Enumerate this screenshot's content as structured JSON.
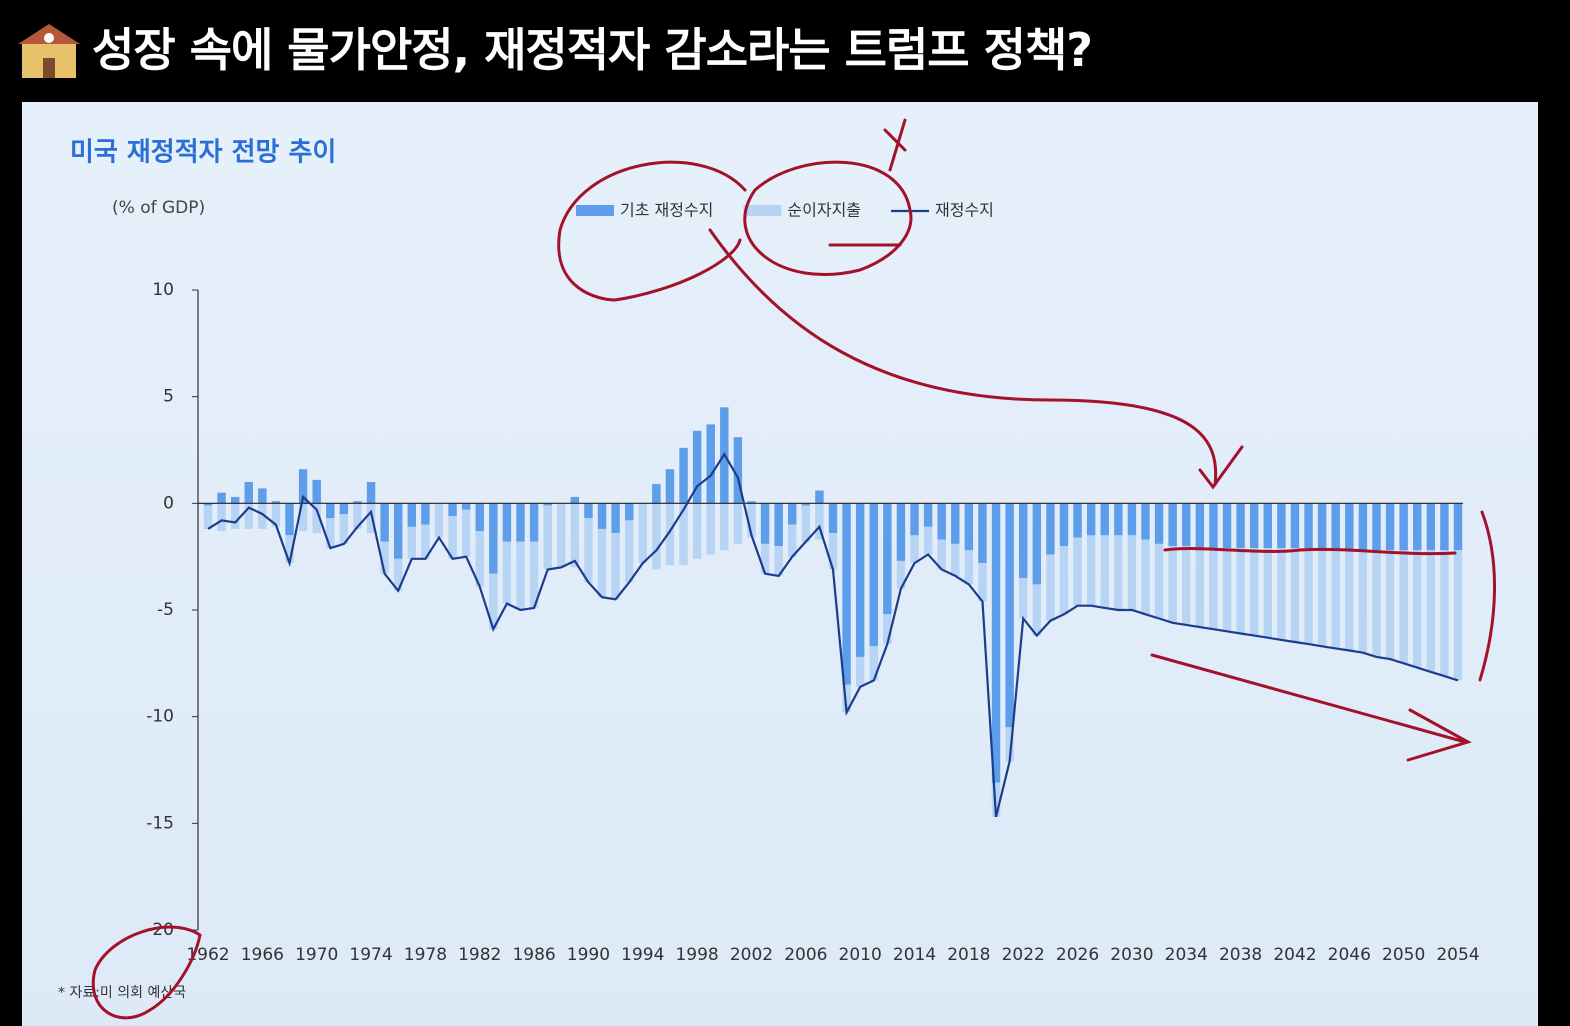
{
  "header": {
    "title": "성장 속에 물가안정, 재정적자 감소라는 트럼프 정책?"
  },
  "chart_data": {
    "type": "bar",
    "title": "미국 재정적자 전망 추이",
    "y_label": "(% of GDP)",
    "note": "* 자료:미 의회 예산국",
    "x": [
      1962,
      1963,
      1964,
      1965,
      1966,
      1967,
      1968,
      1969,
      1970,
      1971,
      1972,
      1973,
      1974,
      1975,
      1976,
      1977,
      1978,
      1979,
      1980,
      1981,
      1982,
      1983,
      1984,
      1985,
      1986,
      1987,
      1988,
      1989,
      1990,
      1991,
      1992,
      1993,
      1994,
      1995,
      1996,
      1997,
      1998,
      1999,
      2000,
      2001,
      2002,
      2003,
      2004,
      2005,
      2006,
      2007,
      2008,
      2009,
      2010,
      2011,
      2012,
      2013,
      2014,
      2015,
      2016,
      2017,
      2018,
      2019,
      2020,
      2021,
      2022,
      2023,
      2024,
      2025,
      2026,
      2027,
      2028,
      2029,
      2030,
      2031,
      2032,
      2033,
      2034,
      2035,
      2036,
      2037,
      2038,
      2039,
      2040,
      2041,
      2042,
      2043,
      2044,
      2045,
      2046,
      2047,
      2048,
      2049,
      2050,
      2051,
      2052,
      2053,
      2054
    ],
    "xlim": [
      1962,
      2054
    ],
    "xticks": [
      1962,
      1966,
      1970,
      1974,
      1978,
      1982,
      1986,
      1990,
      1994,
      1998,
      2002,
      2006,
      2010,
      2014,
      2018,
      2022,
      2026,
      2030,
      2034,
      2038,
      2042,
      2046,
      2050,
      2054
    ],
    "ylim": [
      -20,
      10
    ],
    "yticks": [
      -20,
      -15,
      -10,
      -5,
      0,
      5,
      10
    ],
    "series": [
      {
        "name": "기초 재정수지",
        "type": "bar",
        "color": "#5d9de9",
        "values": [
          -0.1,
          0.5,
          0.3,
          1.0,
          0.7,
          0.1,
          -1.5,
          1.6,
          1.1,
          -0.7,
          -0.5,
          0.1,
          1.0,
          -1.8,
          -2.6,
          -1.1,
          -1.0,
          0.0,
          -0.6,
          -0.3,
          -1.3,
          -3.3,
          -1.8,
          -1.8,
          -1.8,
          -0.1,
          0.0,
          0.3,
          -0.7,
          -1.2,
          -1.4,
          -0.8,
          0.0,
          0.9,
          1.6,
          2.6,
          3.4,
          3.7,
          4.5,
          3.1,
          0.1,
          -1.9,
          -2.0,
          -1.0,
          -0.1,
          0.6,
          -1.4,
          -8.5,
          -7.2,
          -6.7,
          -5.2,
          -2.7,
          -1.5,
          -1.1,
          -1.7,
          -1.9,
          -2.2,
          -2.8,
          -13.1,
          -10.5,
          -3.5,
          -3.8,
          -2.4,
          -2.0,
          -1.6,
          -1.5,
          -1.5,
          -1.5,
          -1.5,
          -1.7,
          -1.9,
          -2.0,
          -2.0,
          -2.1,
          -2.1,
          -2.1,
          -2.1,
          -2.1,
          -2.1,
          -2.1,
          -2.1,
          -2.1,
          -2.2,
          -2.2,
          -2.2,
          -2.2,
          -2.2,
          -2.2,
          -2.2,
          -2.2,
          -2.2,
          -2.2,
          -2.2
        ]
      },
      {
        "name": "순이자지출",
        "type": "bar",
        "color": "#b7d4f5",
        "values": [
          -1.1,
          -1.3,
          -1.2,
          -1.2,
          -1.2,
          -1.1,
          -1.3,
          -1.3,
          -1.4,
          -1.4,
          -1.4,
          -1.2,
          -1.4,
          -1.5,
          -1.5,
          -1.5,
          -1.6,
          -1.6,
          -2.0,
          -2.2,
          -2.6,
          -2.6,
          -2.9,
          -3.2,
          -3.1,
          -3.0,
          -3.0,
          -3.0,
          -3.0,
          -3.2,
          -3.1,
          -2.9,
          -2.8,
          -3.1,
          -2.9,
          -2.9,
          -2.6,
          -2.4,
          -2.2,
          -1.9,
          -1.6,
          -1.4,
          -1.4,
          -1.5,
          -1.7,
          -1.7,
          -1.7,
          -1.3,
          -1.4,
          -1.6,
          -1.4,
          -1.3,
          -1.3,
          -1.3,
          -1.4,
          -1.5,
          -1.6,
          -1.8,
          -1.6,
          -1.6,
          -1.9,
          -2.4,
          -3.1,
          -3.2,
          -3.2,
          -3.3,
          -3.4,
          -3.5,
          -3.5,
          -3.5,
          -3.5,
          -3.6,
          -3.7,
          -3.7,
          -3.8,
          -3.9,
          -4.0,
          -4.1,
          -4.2,
          -4.3,
          -4.4,
          -4.5,
          -4.5,
          -4.6,
          -4.7,
          -4.8,
          -5.0,
          -5.1,
          -5.3,
          -5.5,
          -5.7,
          -5.9,
          -6.1
        ]
      },
      {
        "name": "재정수지",
        "type": "line",
        "color": "#1c3d8c",
        "values": [
          -1.2,
          -0.8,
          -0.9,
          -0.2,
          -0.5,
          -1.0,
          -2.8,
          0.3,
          -0.3,
          -2.1,
          -1.9,
          -1.1,
          -0.4,
          -3.3,
          -4.1,
          -2.6,
          -2.6,
          -1.6,
          -2.6,
          -2.5,
          -3.9,
          -5.9,
          -4.7,
          -5.0,
          -4.9,
          -3.1,
          -3.0,
          -2.7,
          -3.7,
          -4.4,
          -4.5,
          -3.7,
          -2.8,
          -2.2,
          -1.3,
          -0.3,
          0.8,
          1.3,
          2.3,
          1.2,
          -1.5,
          -3.3,
          -3.4,
          -2.5,
          -1.8,
          -1.1,
          -3.1,
          -9.8,
          -8.6,
          -8.3,
          -6.6,
          -4.0,
          -2.8,
          -2.4,
          -3.1,
          -3.4,
          -3.8,
          -4.6,
          -14.7,
          -12.1,
          -5.4,
          -6.2,
          -5.5,
          -5.2,
          -4.8,
          -4.8,
          -4.9,
          -5.0,
          -5.0,
          -5.2,
          -5.4,
          -5.6,
          -5.7,
          -5.8,
          -5.9,
          -6.0,
          -6.1,
          -6.2,
          -6.3,
          -6.4,
          -6.5,
          -6.6,
          -6.7,
          -6.8,
          -6.9,
          -7.0,
          -7.2,
          -7.3,
          -7.5,
          -7.7,
          -7.9,
          -8.1,
          -8.3
        ]
      }
    ]
  }
}
